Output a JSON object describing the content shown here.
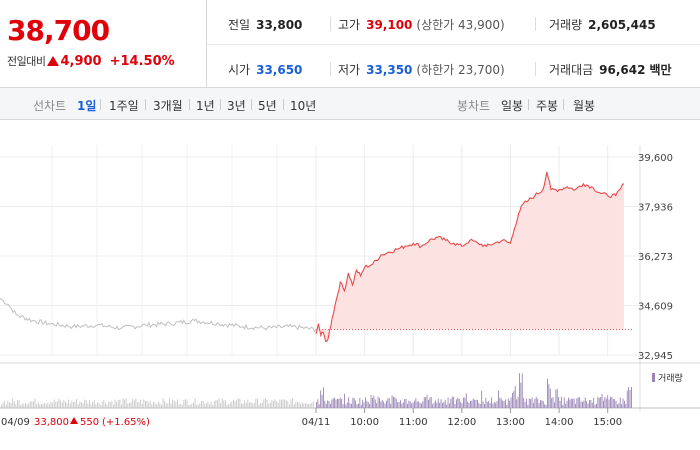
{
  "header": {
    "current_price": "38,700",
    "change_label": "전일대비",
    "change_amount": "4,900",
    "change_percent": "+14.50%",
    "stats": {
      "prev_close": {
        "label": "전일",
        "value": "33,800"
      },
      "high": {
        "label": "고가",
        "value": "39,100",
        "limit_label": "(상한가",
        "limit_value": "43,900)"
      },
      "volume": {
        "label": "거래량",
        "value": "2,605,445"
      },
      "open": {
        "label": "시가",
        "value": "33,650"
      },
      "low": {
        "label": "저가",
        "value": "33,350",
        "limit_label": "(하한가",
        "limit_value": "23,700)"
      },
      "amount": {
        "label": "거래대금",
        "value": "96,642",
        "unit": "백만"
      }
    },
    "colors": {
      "up": "#e0000a",
      "down": "#1a5fd8"
    }
  },
  "tabs": {
    "line_title": "선차트",
    "line_items": [
      "1일",
      "1주일",
      "3개월",
      "1년",
      "3년",
      "5년",
      "10년"
    ],
    "line_active": "1일",
    "candle_title": "봉차트",
    "candle_items": [
      "일봉",
      "주봉",
      "월봉"
    ]
  },
  "chart_data": {
    "type": "line",
    "y_ticks": [
      "39,600",
      "37,936",
      "36,273",
      "34,609",
      "32,945"
    ],
    "ylim": [
      32945,
      39600
    ],
    "x_ticks": [
      "04/11",
      "10:00",
      "11:00",
      "12:00",
      "13:00",
      "14:00",
      "15:00"
    ],
    "reference_price": 33800,
    "previous_day": {
      "date": "04/09",
      "close": "33,800",
      "change": "550",
      "change_pct": "(+1.65%)",
      "series": [
        [
          "09:00",
          34850
        ],
        [
          "09:10",
          34650
        ],
        [
          "09:20",
          34300
        ],
        [
          "09:40",
          34100
        ],
        [
          "10:00",
          34000
        ],
        [
          "10:30",
          33900
        ],
        [
          "11:00",
          33950
        ],
        [
          "11:30",
          33850
        ],
        [
          "12:00",
          33950
        ],
        [
          "12:30",
          34000
        ],
        [
          "13:00",
          34100
        ],
        [
          "13:30",
          34000
        ],
        [
          "14:00",
          33900
        ],
        [
          "14:30",
          33850
        ],
        [
          "15:00",
          33900
        ],
        [
          "15:30",
          33800
        ]
      ]
    },
    "series": [
      {
        "values": [
          [
            "09:00",
            33650
          ],
          [
            "09:03",
            34000
          ],
          [
            "09:06",
            33600
          ],
          [
            "09:09",
            33700
          ],
          [
            "09:12",
            33400
          ],
          [
            "09:15",
            33500
          ],
          [
            "09:20",
            34200
          ],
          [
            "09:25",
            34800
          ],
          [
            "09:30",
            35400
          ],
          [
            "09:35",
            35100
          ],
          [
            "09:40",
            35700
          ],
          [
            "09:45",
            35300
          ],
          [
            "09:50",
            35800
          ],
          [
            "09:55",
            35600
          ],
          [
            "10:00",
            35900
          ],
          [
            "10:10",
            36000
          ],
          [
            "10:20",
            36300
          ],
          [
            "10:30",
            36400
          ],
          [
            "10:40",
            36500
          ],
          [
            "10:50",
            36600
          ],
          [
            "11:00",
            36700
          ],
          [
            "11:10",
            36600
          ],
          [
            "11:20",
            36800
          ],
          [
            "11:30",
            36900
          ],
          [
            "11:40",
            36800
          ],
          [
            "11:50",
            36700
          ],
          [
            "12:00",
            36600
          ],
          [
            "12:10",
            36800
          ],
          [
            "12:20",
            36700
          ],
          [
            "12:30",
            36600
          ],
          [
            "12:40",
            36700
          ],
          [
            "12:50",
            36800
          ],
          [
            "13:00",
            36700
          ],
          [
            "13:05",
            37200
          ],
          [
            "13:10",
            37700
          ],
          [
            "13:15",
            38000
          ],
          [
            "13:20",
            38100
          ],
          [
            "13:30",
            38300
          ],
          [
            "13:40",
            38500
          ],
          [
            "13:45",
            39100
          ],
          [
            "13:50",
            38500
          ],
          [
            "14:00",
            38500
          ],
          [
            "14:10",
            38600
          ],
          [
            "14:20",
            38500
          ],
          [
            "14:30",
            38700
          ],
          [
            "14:40",
            38600
          ],
          [
            "14:50",
            38400
          ],
          [
            "15:00",
            38300
          ],
          [
            "15:10",
            38300
          ],
          [
            "15:15",
            38500
          ],
          [
            "15:20",
            38700
          ]
        ]
      }
    ],
    "volume_legend": "거래량",
    "colors": {
      "line": "#e84a4a",
      "fill": "#fde2e2",
      "prev_line": "#c0c0c0",
      "volume": "#9a85b6",
      "prev_volume": "#c8c8c8"
    }
  }
}
